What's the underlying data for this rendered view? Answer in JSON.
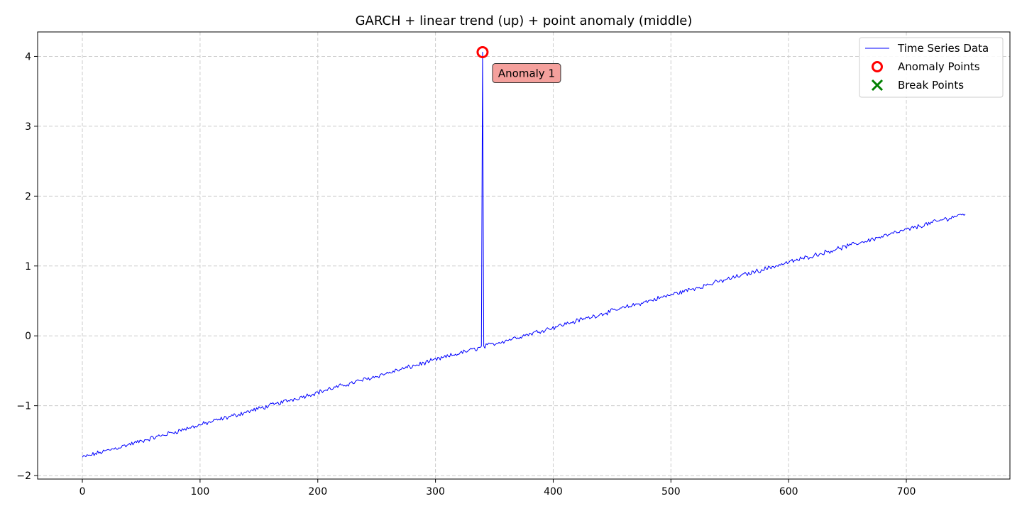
{
  "chart_data": {
    "type": "line",
    "title": "GARCH + linear trend (up) + point anomaly (middle)",
    "xlabel": "",
    "ylabel": "",
    "xlim": [
      -38,
      788
    ],
    "ylim": [
      -2.05,
      4.35
    ],
    "x_ticks": [
      0,
      100,
      200,
      300,
      400,
      500,
      600,
      700
    ],
    "y_ticks": [
      -2,
      -1,
      0,
      1,
      2,
      3,
      4
    ],
    "y_tick_labels": [
      "−2",
      "−1",
      "0",
      "1",
      "2",
      "3",
      "4"
    ],
    "grid": true,
    "legend_position": "top-right",
    "legend": [
      "Time Series Data",
      "Anomaly Points",
      "Break Points"
    ],
    "series": [
      {
        "name": "Time Series Data",
        "color": "#0000ff",
        "trend": {
          "x_start": 0,
          "y_start": -1.74,
          "x_end": 750,
          "y_end": 1.75,
          "points": 751
        },
        "anomaly": {
          "x": 340,
          "y": 4.06
        }
      }
    ],
    "anomaly_points": [
      {
        "x": 340,
        "y": 4.06,
        "label": "Anomaly 1"
      }
    ],
    "break_points": [],
    "colors": {
      "series": "#0000ff",
      "anomaly": "#ff0000",
      "break": "#008000",
      "annotation_fill": "#f4a09c"
    }
  }
}
